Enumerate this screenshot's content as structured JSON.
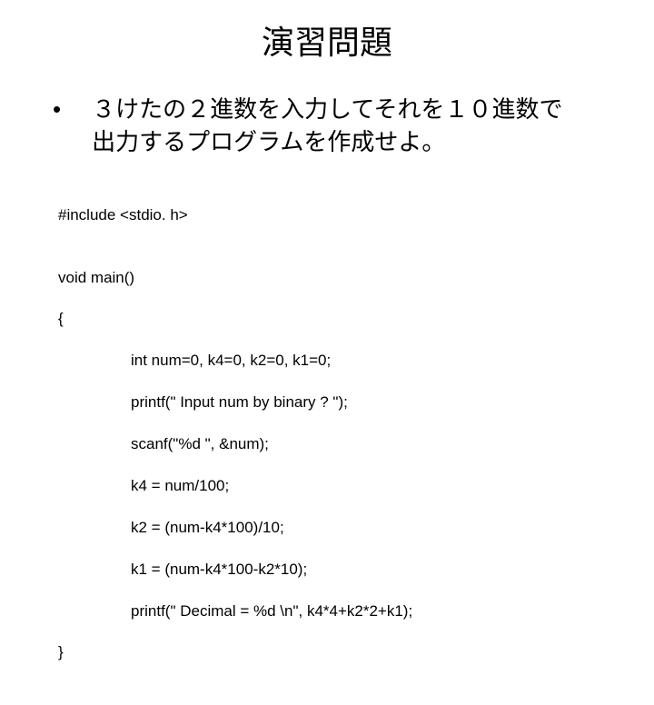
{
  "title": "演習問題",
  "bullet": "•",
  "problem_line1": "３けたの２進数を入力してそれを１０進数で",
  "problem_line2": "出力するプログラムを作成せよ。",
  "code": {
    "l1": "#include <stdio. h>",
    "l2": "",
    "l3": "void main()",
    "l4": "{",
    "l5": "int num=0, k4=0, k2=0, k1=0;",
    "l6": "printf(\" Input num by binary ? \");",
    "l7": "scanf(\"%d \", &num);",
    "l8": "k4 = num/100;",
    "l9": "k2 = (num-k4*100)/10;",
    "l10": "k1 = (num-k4*100-k2*10);",
    "l11": "printf(\" Decimal = %d \\n\", k4*4+k2*2+k1);",
    "l12": "}"
  }
}
